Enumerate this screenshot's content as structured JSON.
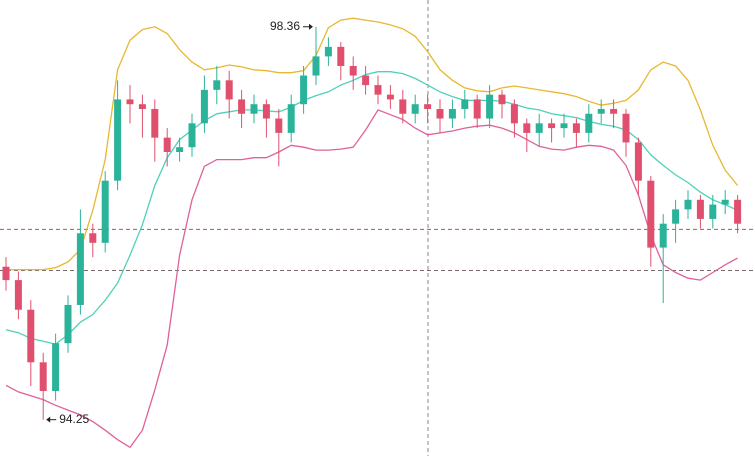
{
  "chart_data": {
    "type": "candlestick",
    "ylim": [
      93.87,
      98.64
    ],
    "up_color": "#2bb39a",
    "down_color": "#e0506e",
    "open": [
      95.85,
      95.71,
      95.4,
      94.85,
      94.55,
      95.05,
      95.45,
      96.2,
      96.1,
      96.75,
      97.6,
      97.55,
      97.5,
      97.2,
      97.05,
      97.1,
      97.35,
      97.7,
      97.8,
      97.6,
      97.45,
      97.55,
      97.4,
      97.25,
      97.55,
      97.85,
      98.05,
      98.15,
      97.95,
      97.85,
      97.75,
      97.65,
      97.6,
      97.45,
      97.55,
      97.5,
      97.4,
      97.5,
      97.6,
      97.4,
      97.65,
      97.55,
      97.35,
      97.25,
      97.35,
      97.3,
      97.35,
      97.25,
      97.45,
      97.5,
      97.45,
      97.15,
      96.75,
      96.05,
      96.3,
      96.45,
      96.55,
      96.35,
      96.5,
      96.55
    ],
    "high": [
      95.95,
      95.8,
      95.5,
      94.95,
      95.15,
      95.55,
      96.45,
      96.3,
      96.85,
      97.8,
      97.75,
      97.65,
      97.6,
      97.3,
      97.2,
      97.45,
      97.85,
      97.95,
      97.9,
      97.7,
      97.65,
      97.6,
      97.5,
      97.65,
      97.95,
      98.36,
      98.25,
      98.2,
      98.05,
      97.95,
      97.85,
      97.75,
      97.7,
      97.65,
      97.65,
      97.6,
      97.6,
      97.7,
      97.65,
      97.75,
      97.7,
      97.6,
      97.4,
      97.45,
      97.4,
      97.45,
      97.4,
      97.55,
      97.6,
      97.6,
      97.5,
      97.2,
      96.8,
      96.4,
      96.55,
      96.65,
      96.6,
      96.6,
      96.65,
      96.6
    ],
    "low": [
      95.6,
      95.3,
      94.6,
      94.25,
      94.45,
      94.95,
      95.35,
      95.95,
      96.0,
      96.65,
      97.35,
      97.2,
      96.95,
      96.9,
      96.95,
      97.0,
      97.25,
      97.55,
      97.4,
      97.3,
      97.35,
      97.2,
      96.9,
      97.15,
      97.45,
      97.75,
      97.95,
      97.8,
      97.7,
      97.65,
      97.55,
      97.5,
      97.35,
      97.35,
      97.35,
      97.25,
      97.3,
      97.4,
      97.3,
      97.3,
      97.4,
      97.2,
      97.05,
      97.1,
      97.15,
      97.2,
      97.1,
      97.15,
      97.35,
      97.3,
      97.0,
      96.6,
      95.85,
      95.47,
      96.1,
      96.35,
      96.25,
      96.25,
      96.4,
      96.2
    ],
    "close": [
      95.71,
      95.4,
      94.85,
      94.55,
      95.05,
      95.45,
      96.2,
      96.1,
      96.75,
      97.6,
      97.55,
      97.5,
      97.2,
      97.05,
      97.1,
      97.35,
      97.7,
      97.8,
      97.6,
      97.45,
      97.55,
      97.4,
      97.25,
      97.55,
      97.85,
      98.05,
      98.15,
      97.95,
      97.85,
      97.75,
      97.65,
      97.6,
      97.45,
      97.55,
      97.5,
      97.4,
      97.5,
      97.6,
      97.4,
      97.65,
      97.55,
      97.35,
      97.25,
      97.35,
      97.3,
      97.35,
      97.25,
      97.45,
      97.5,
      97.45,
      97.15,
      96.75,
      96.05,
      96.3,
      96.45,
      96.55,
      96.35,
      96.5,
      96.55,
      96.3
    ],
    "overlays": [
      {
        "color": "#e8b830",
        "values": [
          95.82,
          95.82,
          95.82,
          95.82,
          95.84,
          95.9,
          96.03,
          96.44,
          96.97,
          97.91,
          98.22,
          98.33,
          98.36,
          98.29,
          98.12,
          97.99,
          97.91,
          97.93,
          97.96,
          97.94,
          97.91,
          97.9,
          97.88,
          97.88,
          97.9,
          98.06,
          98.35,
          98.43,
          98.45,
          98.43,
          98.41,
          98.38,
          98.34,
          98.26,
          98.1,
          97.91,
          97.8,
          97.72,
          97.69,
          97.68,
          97.72,
          97.74,
          97.72,
          97.7,
          97.68,
          97.66,
          97.63,
          97.58,
          97.54,
          97.56,
          97.59,
          97.7,
          97.91,
          97.99,
          97.95,
          97.8,
          97.49,
          97.12,
          96.86,
          96.7
        ]
      },
      {
        "color": "#4fd1b8",
        "values": [
          95.19,
          95.16,
          95.1,
          95.07,
          95.04,
          95.14,
          95.27,
          95.35,
          95.5,
          95.68,
          95.97,
          96.29,
          96.7,
          96.99,
          97.18,
          97.28,
          97.38,
          97.45,
          97.47,
          97.49,
          97.49,
          97.48,
          97.47,
          97.52,
          97.59,
          97.64,
          97.68,
          97.75,
          97.8,
          97.86,
          97.89,
          97.89,
          97.87,
          97.82,
          97.75,
          97.68,
          97.63,
          97.59,
          97.59,
          97.59,
          97.58,
          97.55,
          97.51,
          97.49,
          97.45,
          97.43,
          97.41,
          97.37,
          97.34,
          97.32,
          97.28,
          97.18,
          97.02,
          96.91,
          96.81,
          96.73,
          96.63,
          96.55,
          96.5,
          96.44
        ]
      },
      {
        "color": "#e0609a",
        "values": [
          94.61,
          94.54,
          94.5,
          94.46,
          94.4,
          94.35,
          94.3,
          94.23,
          94.14,
          94.04,
          93.96,
          94.14,
          94.56,
          95.03,
          95.97,
          96.55,
          96.9,
          96.97,
          96.97,
          96.97,
          96.99,
          96.99,
          97.05,
          97.12,
          97.1,
          97.07,
          97.07,
          97.08,
          97.1,
          97.28,
          97.49,
          97.44,
          97.39,
          97.3,
          97.23,
          97.25,
          97.27,
          97.3,
          97.32,
          97.33,
          97.3,
          97.25,
          97.18,
          97.11,
          97.08,
          97.07,
          97.1,
          97.12,
          97.11,
          97.07,
          96.91,
          96.6,
          96.18,
          95.87,
          95.79,
          95.73,
          95.71,
          95.79,
          95.87,
          95.94
        ]
      }
    ],
    "hlines": [
      {
        "value": 96.24,
        "color": "#c0504d"
      },
      {
        "value": 95.81,
        "color": "#7a6a6a"
      }
    ]
  }
}
